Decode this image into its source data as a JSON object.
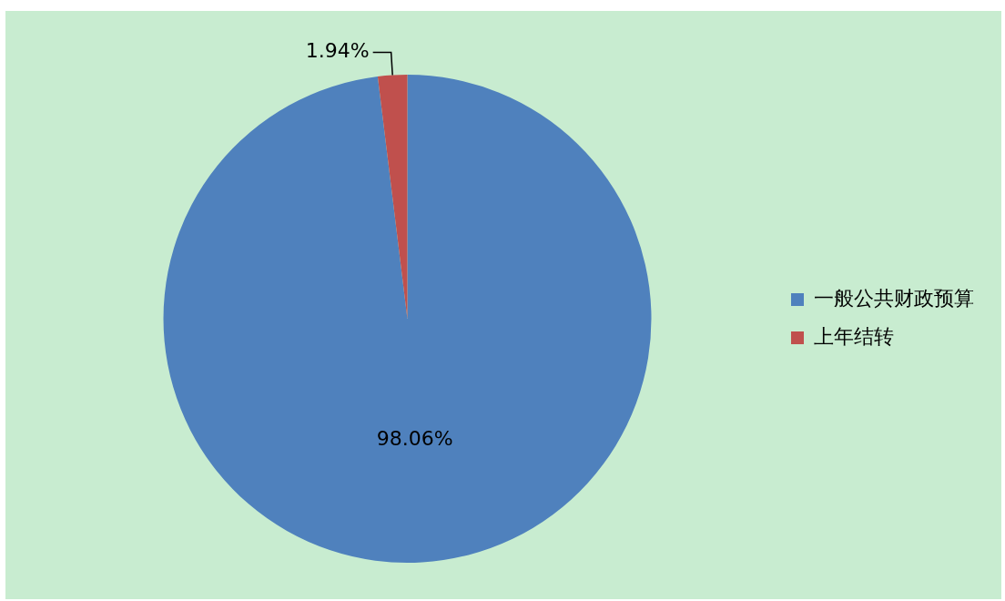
{
  "chart_data": {
    "type": "pie",
    "categories": [
      "一般公共财政预算",
      "上年结转"
    ],
    "values": [
      98.06,
      1.94
    ],
    "colors": [
      "#4f81bd",
      "#c0504d"
    ],
    "value_labels": [
      "98.06%",
      "1.94%"
    ],
    "legend": "right"
  }
}
